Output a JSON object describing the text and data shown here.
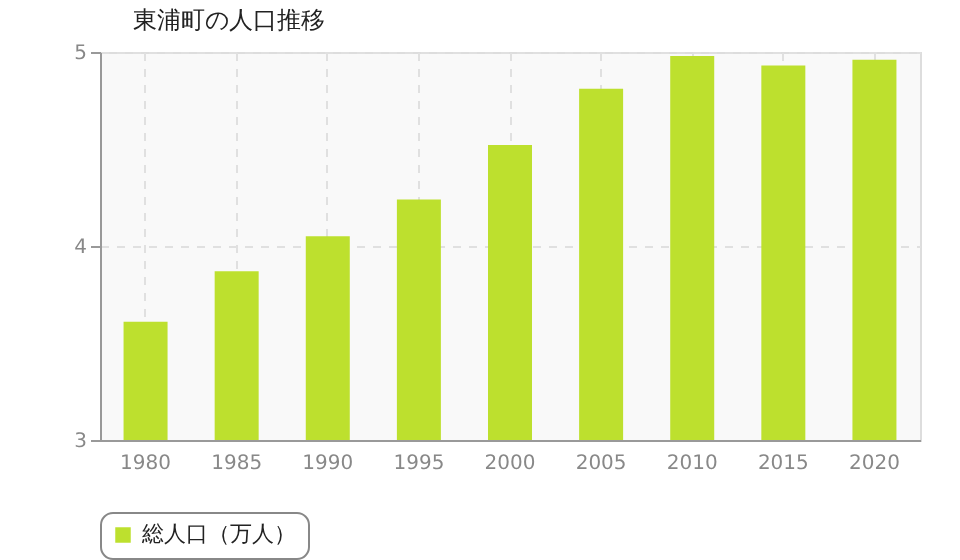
{
  "chart_data": {
    "type": "bar",
    "title": "東浦町の人口推移",
    "categories": [
      "1980",
      "1985",
      "1990",
      "1995",
      "2000",
      "2005",
      "2010",
      "2015",
      "2020"
    ],
    "series": [
      {
        "name": "総人口（万人）",
        "color": "#bde02e",
        "values": [
          3.61,
          3.87,
          4.05,
          4.24,
          4.52,
          4.81,
          4.98,
          4.93,
          4.96
        ]
      }
    ],
    "ylim": [
      3,
      5
    ],
    "yticks": [
      3,
      4,
      5
    ],
    "grid": true,
    "legend": "bottom"
  }
}
